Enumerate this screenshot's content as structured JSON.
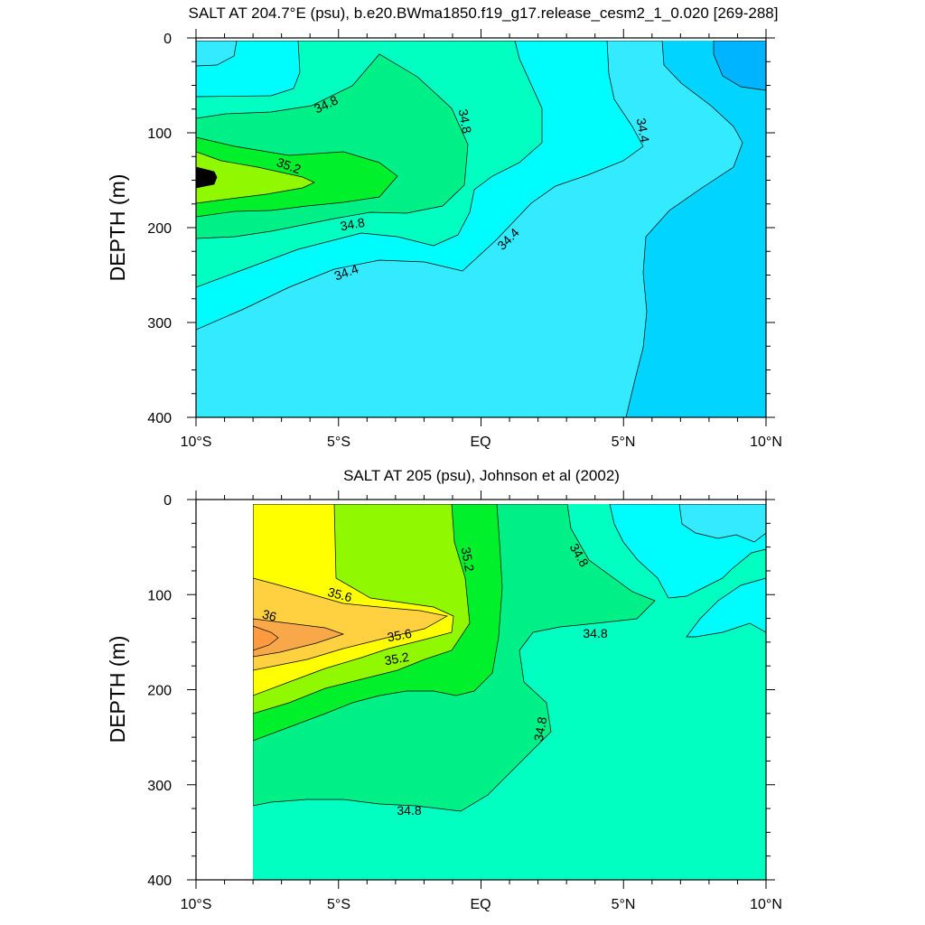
{
  "chart_data": [
    {
      "type": "contour",
      "title": "SALT AT 204.7°E (psu), b.e20.BWma1850.f19_g17.release_cesm2_1_0.020 [269-288]",
      "ylabel": "DEPTH (m)",
      "xlabel": "",
      "x_ticks": [
        "10°S",
        "5°S",
        "EQ",
        "5°N",
        "10°N"
      ],
      "y_ticks": [
        "0",
        "100",
        "200",
        "300",
        "400"
      ],
      "xlim": [
        -10,
        10
      ],
      "ylim": [
        400,
        0
      ],
      "contour_labels": [
        "34.8",
        "34.8",
        "34.4",
        "35.2",
        "34.8",
        "34.4",
        "34.4"
      ],
      "colors": {
        "s34_0": "#00b4ff",
        "s34_2": "#00d4ff",
        "s34_4": "#33eaff",
        "s34_6": "#00fdfd",
        "s34_8": "#00ffc0",
        "s35_0": "#00f088",
        "s35_2": "#00f02c",
        "s35_4": "#90f800"
      }
    },
    {
      "type": "contour",
      "title": "SALT AT 205 (psu), Johnson et al (2002)",
      "ylabel": "DEPTH (m)",
      "xlabel": "",
      "x_ticks": [
        "10°S",
        "5°S",
        "EQ",
        "5°N",
        "10°N"
      ],
      "y_ticks": [
        "0",
        "100",
        "200",
        "300",
        "400"
      ],
      "xlim": [
        -10,
        10
      ],
      "ylim": [
        400,
        0
      ],
      "data_start_x": -8,
      "contour_labels": [
        "35.2",
        "34.8",
        "35.6",
        "36",
        "35.6",
        "35.2",
        "34.8",
        "34.8",
        "34.8"
      ],
      "colors": {
        "s34_4": "#33eaff",
        "s34_6": "#00fdfd",
        "s34_8": "#00ffc0",
        "s35_0": "#00f088",
        "s35_2": "#00f02c",
        "s35_4": "#90f800",
        "s35_6": "#ffff00",
        "s35_8": "#ffd040",
        "s36_0": "#f8a848"
      }
    }
  ]
}
